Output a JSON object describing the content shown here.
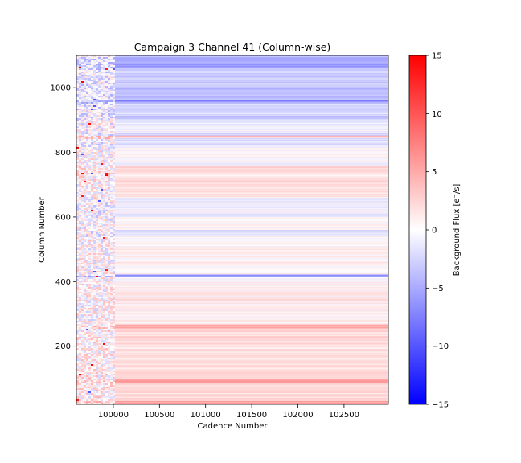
{
  "chart_data": {
    "type": "heatmap",
    "title": "Campaign 3 Channel 41 (Column-wise)",
    "xlabel": "Cadence Number",
    "ylabel": "Column Number",
    "xlim": [
      99600,
      102980
    ],
    "ylim": [
      20,
      1100
    ],
    "x_ticks": [
      {
        "value": 100000,
        "label": "100000"
      },
      {
        "value": 100500,
        "label": "100500"
      },
      {
        "value": 101000,
        "label": "101000"
      },
      {
        "value": 101500,
        "label": "101500"
      },
      {
        "value": 102000,
        "label": "102000"
      },
      {
        "value": 102500,
        "label": "102500"
      }
    ],
    "y_ticks": [
      {
        "value": 200,
        "label": "200"
      },
      {
        "value": 400,
        "label": "400"
      },
      {
        "value": 600,
        "label": "600"
      },
      {
        "value": 800,
        "label": "800"
      },
      {
        "value": 1000,
        "label": "1000"
      }
    ],
    "colormap": "bwr",
    "colors": {
      "low": "#0000ff",
      "mid": "#ffffff",
      "high": "#ff0000"
    },
    "grid": false,
    "colorbar": {
      "label": "Background Flux [e⁻/s]",
      "range": [
        -15,
        15
      ],
      "ticks": [
        {
          "value": 15,
          "label": "15"
        },
        {
          "value": 10,
          "label": "10"
        },
        {
          "value": 5,
          "label": "5"
        },
        {
          "value": 0,
          "label": "0"
        },
        {
          "value": -5,
          "label": "−5"
        },
        {
          "value": -10,
          "label": "−10"
        },
        {
          "value": -15,
          "label": "−15"
        }
      ]
    },
    "noisy_segment": {
      "x_end": 100000
    },
    "bands": [
      {
        "y0": 20,
        "y1": 30,
        "v": 5.5
      },
      {
        "y0": 30,
        "y1": 80,
        "v": 2.0
      },
      {
        "y0": 80,
        "y1": 88,
        "v": 3.0
      },
      {
        "y0": 88,
        "y1": 98,
        "v": 6.0
      },
      {
        "y0": 98,
        "y1": 130,
        "v": 2.5
      },
      {
        "y0": 130,
        "y1": 200,
        "v": 1.8
      },
      {
        "y0": 200,
        "y1": 255,
        "v": 2.2
      },
      {
        "y0": 255,
        "y1": 268,
        "v": 5.5
      },
      {
        "y0": 268,
        "y1": 330,
        "v": 0.8
      },
      {
        "y0": 330,
        "y1": 400,
        "v": 1.2
      },
      {
        "y0": 400,
        "y1": 416,
        "v": 0.5
      },
      {
        "y0": 416,
        "y1": 422,
        "v": -7.0
      },
      {
        "y0": 422,
        "y1": 470,
        "v": 0.3
      },
      {
        "y0": 470,
        "y1": 540,
        "v": 0.6
      },
      {
        "y0": 540,
        "y1": 560,
        "v": -1.5
      },
      {
        "y0": 560,
        "y1": 600,
        "v": 0.2
      },
      {
        "y0": 600,
        "y1": 660,
        "v": -1.2
      },
      {
        "y0": 660,
        "y1": 730,
        "v": 1.5
      },
      {
        "y0": 730,
        "y1": 760,
        "v": 2.5
      },
      {
        "y0": 760,
        "y1": 820,
        "v": 0.3
      },
      {
        "y0": 820,
        "y1": 845,
        "v": -2.0
      },
      {
        "y0": 845,
        "y1": 852,
        "v": 5.0
      },
      {
        "y0": 852,
        "y1": 862,
        "v": -2.5
      },
      {
        "y0": 862,
        "y1": 900,
        "v": -1.0
      },
      {
        "y0": 900,
        "y1": 955,
        "v": -3.0
      },
      {
        "y0": 955,
        "y1": 962,
        "v": -7.0
      },
      {
        "y0": 962,
        "y1": 1000,
        "v": -3.5
      },
      {
        "y0": 1000,
        "y1": 1060,
        "v": -3.0
      },
      {
        "y0": 1060,
        "y1": 1100,
        "v": -5.0
      }
    ]
  }
}
